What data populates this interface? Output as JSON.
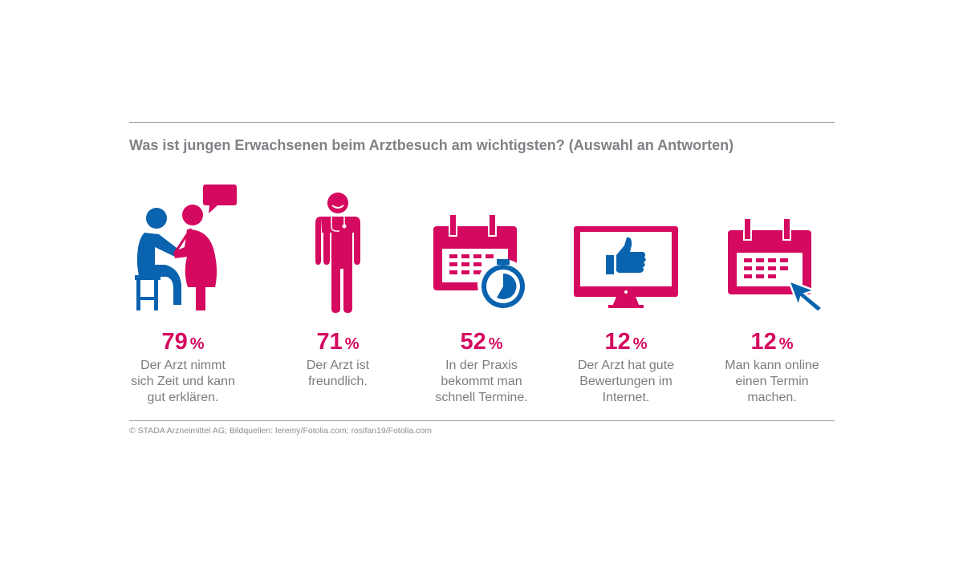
{
  "title": "Was ist jungen Erwachsenen beim Arztbesuch am wichtigsten? (Auswahl an Antworten)",
  "colors": {
    "accent": "#d4095f",
    "secondary": "#0a63ae",
    "text": "#7a7d80"
  },
  "items": [
    {
      "icon": "doctor-patient-icon",
      "value": "79",
      "unit": "%",
      "lines": [
        "Der Arzt nimmt",
        "sich Zeit und kann",
        "gut erklären."
      ]
    },
    {
      "icon": "doctor-stethoscope-icon",
      "value": "71",
      "unit": "%",
      "lines": [
        "Der Arzt ist",
        "freundlich.",
        ""
      ]
    },
    {
      "icon": "calendar-stopwatch-icon",
      "value": "52",
      "unit": "%",
      "lines": [
        "In der Praxis",
        "bekommt man",
        "schnell Termine."
      ]
    },
    {
      "icon": "monitor-thumbs-up-icon",
      "value": "12",
      "unit": "%",
      "lines": [
        "Der Arzt hat gute",
        "Bewertungen im",
        "Internet."
      ]
    },
    {
      "icon": "calendar-cursor-icon",
      "value": "12",
      "unit": "%",
      "lines": [
        "Man kann online",
        "einen Termin",
        "machen."
      ]
    }
  ],
  "credit": "© STADA Arzneimittel AG; Bildquellen: leremy/Fotolia.com; rosifan19/Fotolia.com"
}
